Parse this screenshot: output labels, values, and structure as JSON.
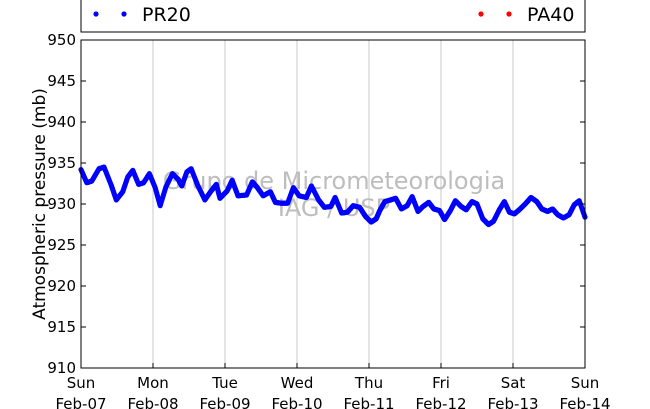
{
  "chart_data": {
    "type": "scatter",
    "ylabel": "Atmospheric pressure (mb)",
    "ylim": [
      910,
      950
    ],
    "yticks": [
      910,
      915,
      920,
      925,
      930,
      935,
      940,
      945,
      950
    ],
    "xlim": [
      "2010-02-07 00:00",
      "2010-02-14 00:00"
    ],
    "xticks": [
      {
        "line1": "Sun",
        "line2": "Feb-07"
      },
      {
        "line1": "Mon",
        "line2": "Feb-08"
      },
      {
        "line1": "Tue",
        "line2": "Feb-09"
      },
      {
        "line1": "Wed",
        "line2": "Feb-10"
      },
      {
        "line1": "Thu",
        "line2": "Feb-11"
      },
      {
        "line1": "Fri",
        "line2": "Feb-12"
      },
      {
        "line1": "Sat",
        "line2": "Feb-13"
      },
      {
        "line1": "Sun",
        "line2": "Feb-14"
      }
    ],
    "grid": "vertical",
    "legend_placement": "top",
    "watermark": [
      "Grupo de Micrometeorologia",
      "IAG / USP"
    ],
    "series": [
      {
        "name": "PR20",
        "color": "#0000ff",
        "points": [
          [
            0.0,
            934.2
          ],
          [
            0.08,
            932.6
          ],
          [
            0.15,
            932.8
          ],
          [
            0.25,
            934.3
          ],
          [
            0.32,
            934.5
          ],
          [
            0.42,
            932.3
          ],
          [
            0.49,
            930.5
          ],
          [
            0.58,
            931.5
          ],
          [
            0.65,
            933.3
          ],
          [
            0.72,
            934.1
          ],
          [
            0.8,
            932.4
          ],
          [
            0.87,
            932.6
          ],
          [
            0.95,
            933.7
          ],
          [
            1.03,
            932.0
          ],
          [
            1.1,
            929.8
          ],
          [
            1.18,
            932.1
          ],
          [
            1.27,
            933.7
          ],
          [
            1.35,
            933.0
          ],
          [
            1.4,
            932.2
          ],
          [
            1.47,
            933.9
          ],
          [
            1.53,
            934.3
          ],
          [
            1.62,
            932.3
          ],
          [
            1.72,
            930.5
          ],
          [
            1.8,
            931.5
          ],
          [
            1.88,
            932.4
          ],
          [
            1.93,
            930.7
          ],
          [
            2.03,
            931.6
          ],
          [
            2.1,
            932.9
          ],
          [
            2.18,
            931.0
          ],
          [
            2.3,
            931.1
          ],
          [
            2.38,
            932.7
          ],
          [
            2.45,
            932.0
          ],
          [
            2.53,
            931.0
          ],
          [
            2.63,
            931.5
          ],
          [
            2.7,
            930.2
          ],
          [
            2.78,
            930.1
          ],
          [
            2.87,
            930.1
          ],
          [
            2.95,
            932.0
          ],
          [
            3.03,
            931.0
          ],
          [
            3.13,
            930.8
          ],
          [
            3.2,
            932.2
          ],
          [
            3.3,
            930.5
          ],
          [
            3.38,
            929.6
          ],
          [
            3.47,
            929.7
          ],
          [
            3.53,
            930.8
          ],
          [
            3.62,
            928.9
          ],
          [
            3.7,
            929.0
          ],
          [
            3.78,
            929.8
          ],
          [
            3.87,
            929.6
          ],
          [
            3.95,
            928.5
          ],
          [
            4.03,
            927.8
          ],
          [
            4.1,
            928.2
          ],
          [
            4.15,
            929.2
          ],
          [
            4.22,
            930.3
          ],
          [
            4.3,
            930.5
          ],
          [
            4.37,
            930.7
          ],
          [
            4.45,
            929.4
          ],
          [
            4.53,
            929.8
          ],
          [
            4.6,
            930.9
          ],
          [
            4.68,
            929.1
          ],
          [
            4.75,
            929.7
          ],
          [
            4.83,
            930.2
          ],
          [
            4.9,
            929.4
          ],
          [
            4.98,
            929.2
          ],
          [
            5.05,
            928.1
          ],
          [
            5.13,
            929.2
          ],
          [
            5.2,
            930.4
          ],
          [
            5.28,
            929.7
          ],
          [
            5.35,
            929.3
          ],
          [
            5.43,
            930.3
          ],
          [
            5.5,
            930.0
          ],
          [
            5.58,
            928.2
          ],
          [
            5.66,
            927.5
          ],
          [
            5.73,
            927.9
          ],
          [
            5.81,
            929.3
          ],
          [
            5.88,
            930.3
          ],
          [
            5.95,
            929.0
          ],
          [
            6.02,
            928.8
          ],
          [
            6.1,
            929.4
          ],
          [
            6.18,
            930.1
          ],
          [
            6.25,
            930.8
          ],
          [
            6.33,
            930.3
          ],
          [
            6.4,
            929.4
          ],
          [
            6.48,
            929.1
          ],
          [
            6.55,
            929.4
          ],
          [
            6.62,
            928.7
          ],
          [
            6.7,
            928.3
          ],
          [
            6.78,
            928.7
          ],
          [
            6.85,
            929.9
          ],
          [
            6.92,
            930.4
          ],
          [
            7.0,
            928.4
          ]
        ]
      },
      {
        "name": "PA40",
        "color": "#ff0000",
        "points": []
      }
    ]
  }
}
